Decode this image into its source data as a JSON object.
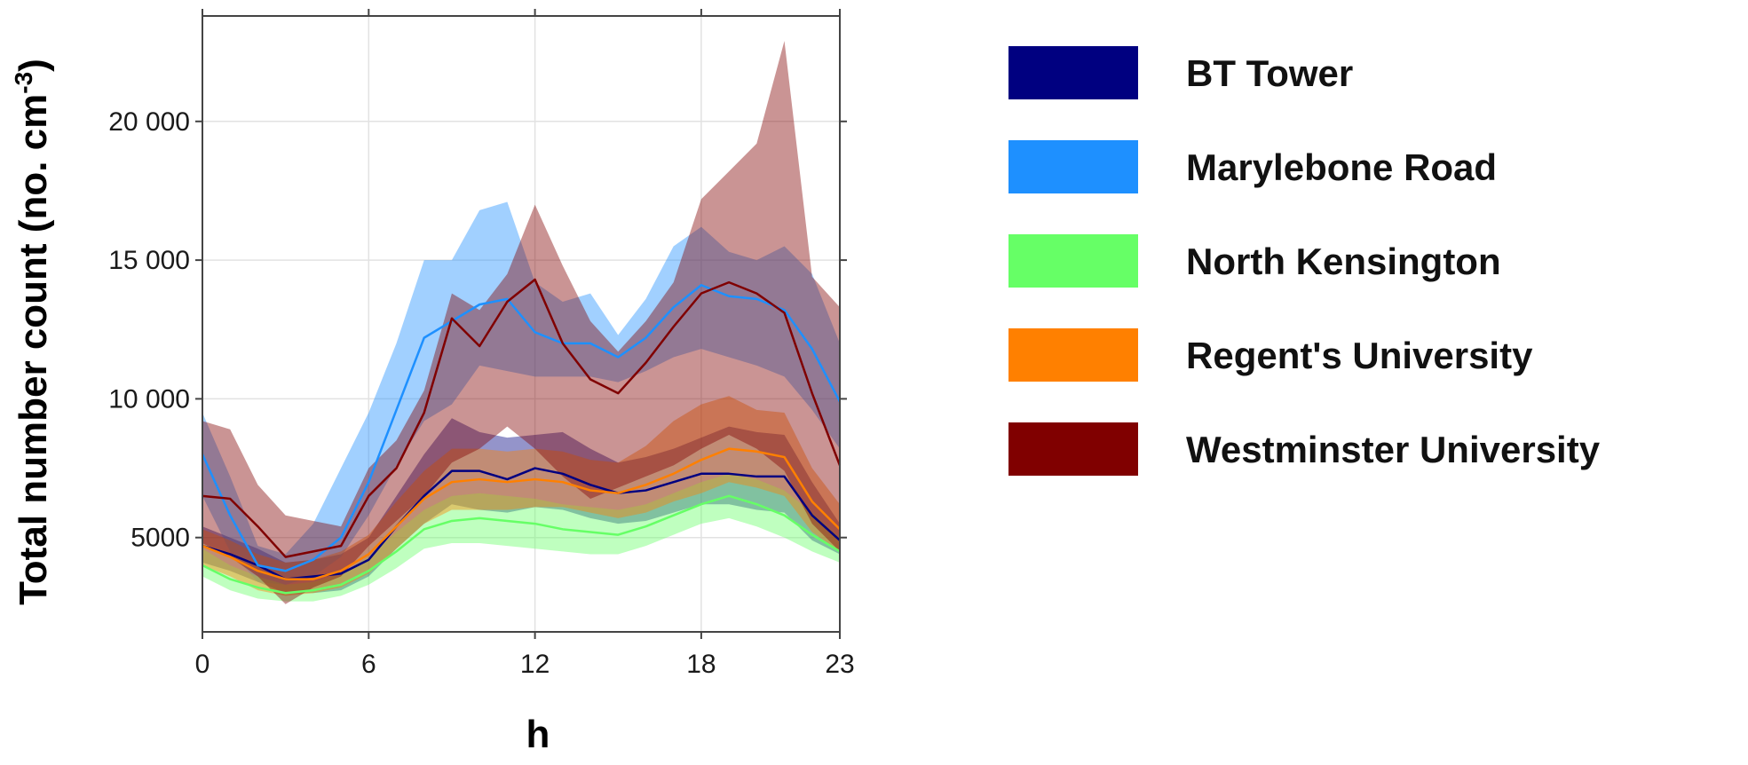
{
  "chart_data": {
    "type": "line",
    "xlabel": "h",
    "ylabel": "Total number count (no. cm",
    "ylabel_sup": "-3",
    "ylabel_close": ")",
    "xlim": [
      0,
      23
    ],
    "ylim": [
      1600,
      23800
    ],
    "xticks": [
      0,
      6,
      12,
      18,
      23
    ],
    "xtick_labels": [
      "0",
      "6",
      "12",
      "18",
      "23"
    ],
    "yticks": [
      5000,
      10000,
      15000,
      20000
    ],
    "ytick_labels": [
      "5000",
      "10 000",
      "15 000",
      "20 000"
    ],
    "grid": true,
    "legend_position": "right",
    "x": [
      0,
      1,
      2,
      3,
      4,
      5,
      6,
      7,
      8,
      9,
      10,
      11,
      12,
      13,
      14,
      15,
      16,
      17,
      18,
      19,
      20,
      21,
      22,
      23
    ],
    "series": [
      {
        "name": "BT Tower",
        "color": "#000080",
        "values": [
          4700,
          4400,
          4000,
          3500,
          3600,
          3700,
          4200,
          5400,
          6500,
          7400,
          7400,
          7100,
          7500,
          7300,
          6900,
          6600,
          6700,
          7000,
          7300,
          7300,
          7200,
          7200,
          5800,
          4900
        ],
        "lower": [
          4100,
          3800,
          3400,
          3000,
          3000,
          3100,
          3600,
          4600,
          5500,
          6200,
          6000,
          5900,
          6100,
          6000,
          5700,
          5500,
          5600,
          5900,
          6200,
          6200,
          6000,
          5900,
          4900,
          4400
        ],
        "upper": [
          5400,
          5000,
          4600,
          4100,
          4200,
          4400,
          5000,
          6500,
          8000,
          9300,
          8800,
          8600,
          8700,
          8800,
          8200,
          7700,
          7900,
          8200,
          8600,
          9000,
          8800,
          8700,
          7000,
          5500
        ]
      },
      {
        "name": "Marylebone Road",
        "color": "#1E90FF",
        "values": [
          8000,
          5800,
          4000,
          3800,
          4200,
          5000,
          7000,
          9600,
          12200,
          12800,
          13400,
          13600,
          12400,
          12000,
          12000,
          11500,
          12200,
          13300,
          14100,
          13700,
          13600,
          13200,
          11800,
          9900
        ],
        "lower": [
          6500,
          4500,
          3400,
          3300,
          3600,
          4300,
          5800,
          7600,
          9200,
          9800,
          11200,
          11000,
          10800,
          10800,
          10800,
          10600,
          11000,
          11500,
          11800,
          11500,
          11200,
          10800,
          9600,
          8200
        ],
        "upper": [
          9500,
          7200,
          4700,
          4400,
          5500,
          7500,
          9500,
          12000,
          15000,
          15000,
          16800,
          17100,
          14200,
          13500,
          13800,
          12300,
          13600,
          15500,
          16200,
          15300,
          15000,
          15500,
          14500,
          12000
        ]
      },
      {
        "name": "North Kensington",
        "color": "#66FF66",
        "values": [
          4000,
          3500,
          3200,
          3000,
          3100,
          3300,
          3800,
          4500,
          5300,
          5600,
          5700,
          5600,
          5500,
          5300,
          5200,
          5100,
          5400,
          5800,
          6200,
          6500,
          6200,
          5800,
          5100,
          4500
        ],
        "lower": [
          3600,
          3100,
          2800,
          2700,
          2700,
          2900,
          3300,
          3900,
          4600,
          4800,
          4800,
          4700,
          4600,
          4500,
          4400,
          4400,
          4700,
          5100,
          5500,
          5700,
          5400,
          5000,
          4500,
          4100
        ],
        "upper": [
          4600,
          4000,
          3600,
          3300,
          3400,
          3700,
          4300,
          5200,
          6000,
          6500,
          6600,
          6500,
          6400,
          6200,
          6100,
          6000,
          6200,
          6600,
          7000,
          7300,
          7100,
          6700,
          5900,
          5000
        ]
      },
      {
        "name": "Regent's University",
        "color": "#FF8000",
        "values": [
          4700,
          4300,
          3800,
          3500,
          3500,
          3800,
          4400,
          5400,
          6400,
          7000,
          7100,
          7000,
          7100,
          7000,
          6700,
          6600,
          6900,
          7300,
          7800,
          8200,
          8100,
          7900,
          6300,
          5300
        ],
        "lower": [
          4000,
          3600,
          3100,
          2900,
          3000,
          3200,
          3700,
          4600,
          5500,
          6000,
          6000,
          6000,
          6100,
          6100,
          5900,
          5700,
          5900,
          6300,
          6600,
          7000,
          6800,
          6500,
          5200,
          4500
        ],
        "upper": [
          5300,
          4900,
          4400,
          4100,
          4200,
          4500,
          5100,
          6300,
          7400,
          8200,
          8200,
          8100,
          8200,
          8100,
          7800,
          7700,
          8300,
          9200,
          9800,
          10100,
          9600,
          9500,
          7500,
          6200
        ]
      },
      {
        "name": "Westminster University",
        "color": "#800000",
        "values": [
          6500,
          6400,
          5400,
          4300,
          4500,
          4700,
          6500,
          7500,
          9500,
          12900,
          11900,
          13500,
          14300,
          12000,
          10700,
          10200,
          11300,
          12600,
          13800,
          14200,
          13800,
          13100,
          10200,
          7600
        ],
        "lower": [
          4800,
          4300,
          3600,
          2600,
          3200,
          3600,
          4700,
          5600,
          6500,
          7700,
          8200,
          9000,
          8200,
          7200,
          6400,
          6800,
          7200,
          7600,
          8200,
          8700,
          8200,
          7400,
          5500,
          4500
        ],
        "upper": [
          9200,
          8900,
          6900,
          5800,
          5600,
          5400,
          7500,
          8500,
          10300,
          13800,
          13200,
          14500,
          17000,
          14800,
          12800,
          11700,
          12800,
          14200,
          17200,
          18200,
          19200,
          22900,
          14400,
          13300
        ]
      }
    ]
  }
}
